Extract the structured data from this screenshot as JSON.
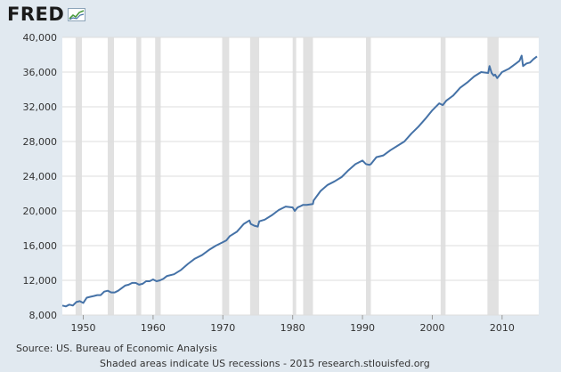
{
  "logo": {
    "text": "FRED"
  },
  "footer": {
    "source": "Source: US. Bureau of Economic Analysis",
    "note": "Shaded areas indicate US recessions - 2015 research.stlouisfed.org"
  },
  "colors": {
    "line": "#4572a7",
    "recession": "#e1e1e1",
    "grid": "#dddddd",
    "plot_bg": "#ffffff",
    "page_bg": "#e1e9f0"
  },
  "chart_data": {
    "type": "line",
    "title": "",
    "xlabel": "",
    "ylabel": "",
    "xlim": [
      1947,
      2015.25
    ],
    "ylim": [
      8000,
      40000
    ],
    "grid": true,
    "x_tick_values": [
      1950,
      1960,
      1970,
      1980,
      1990,
      2000,
      2010
    ],
    "x_tick_labels": [
      "1950",
      "1960",
      "1970",
      "1980",
      "1990",
      "2000",
      "2010"
    ],
    "y_tick_values": [
      8000,
      12000,
      16000,
      20000,
      24000,
      28000,
      32000,
      36000,
      40000
    ],
    "y_tick_labels": [
      "8,000",
      "12,000",
      "16,000",
      "20,000",
      "24,000",
      "28,000",
      "32,000",
      "36,000",
      "40,000"
    ],
    "recessions": [
      [
        1948.9,
        1949.8
      ],
      [
        1953.5,
        1954.4
      ],
      [
        1957.6,
        1958.3
      ],
      [
        1960.3,
        1961.1
      ],
      [
        1969.9,
        1970.9
      ],
      [
        1973.9,
        1975.2
      ],
      [
        1980.0,
        1980.5
      ],
      [
        1981.5,
        1982.9
      ],
      [
        1990.5,
        1991.2
      ],
      [
        2001.2,
        2001.9
      ],
      [
        2007.9,
        2009.5
      ]
    ],
    "series": [
      {
        "x": [
          1947,
          1947.5,
          1948,
          1948.5,
          1949,
          1949.5,
          1950,
          1950.5,
          1951,
          1951.5,
          1952,
          1952.5,
          1953,
          1953.5,
          1954,
          1954.5,
          1955,
          1955.5,
          1956,
          1956.5,
          1957,
          1957.5,
          1958,
          1958.5,
          1959,
          1959.5,
          1960,
          1960.5,
          1961,
          1961.5,
          1962,
          1963,
          1964,
          1965,
          1966,
          1967,
          1968,
          1969,
          1970,
          1970.5,
          1971,
          1972,
          1973,
          1973.8,
          1974,
          1974.5,
          1975,
          1975.2,
          1976,
          1977,
          1978,
          1979,
          1980,
          1980.3,
          1980.7,
          1981,
          1981.5,
          1982,
          1982.9,
          1983,
          1984,
          1985,
          1986,
          1987,
          1988,
          1989,
          1990,
          1990.5,
          1991,
          1991.2,
          1992,
          1993,
          1994,
          1995,
          1996,
          1997,
          1998,
          1999,
          2000,
          2001,
          2001.5,
          2002,
          2003,
          2004,
          2005,
          2006,
          2007,
          2008,
          2008.2,
          2008.5,
          2008.8,
          2009,
          2009.3,
          2009.6,
          2010,
          2011,
          2012,
          2012.5,
          2012.8,
          2013,
          2013.5,
          2014,
          2014.5,
          2015
        ],
        "y": [
          9100,
          9000,
          9200,
          9100,
          9500,
          9600,
          9400,
          10000,
          10100,
          10200,
          10300,
          10300,
          10700,
          10800,
          10600,
          10600,
          10800,
          11100,
          11400,
          11500,
          11700,
          11700,
          11500,
          11600,
          11900,
          11900,
          12100,
          11900,
          12000,
          12200,
          12500,
          12700,
          13200,
          13900,
          14500,
          14900,
          15500,
          16000,
          16400,
          16600,
          17100,
          17600,
          18500,
          18900,
          18500,
          18300,
          18200,
          18800,
          19000,
          19500,
          20100,
          20500,
          20400,
          20000,
          20400,
          20500,
          20700,
          20700,
          20800,
          21200,
          22300,
          23000,
          23400,
          23900,
          24700,
          25400,
          25800,
          25400,
          25300,
          25400,
          26200,
          26400,
          27000,
          27500,
          28000,
          28900,
          29700,
          30600,
          31600,
          32400,
          32200,
          32700,
          33300,
          34200,
          34800,
          35500,
          36000,
          35900,
          36700,
          35900,
          35600,
          35700,
          35300,
          35600,
          36000,
          36400,
          37000,
          37300,
          37900,
          36700,
          37000,
          37100,
          37500,
          37800
        ]
      }
    ]
  }
}
